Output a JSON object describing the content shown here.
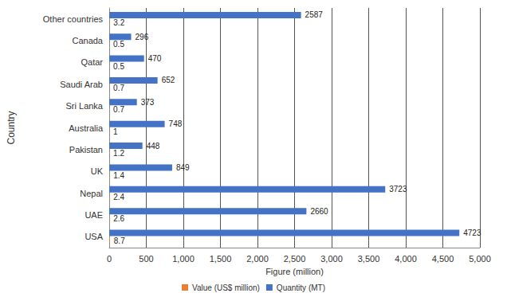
{
  "chart_data": {
    "type": "bar",
    "orientation": "horizontal",
    "x_label": "Figure (million)",
    "y_label": "Country",
    "categories": [
      "USA",
      "UAE",
      "Nepal",
      "UK",
      "Pakistan",
      "Australia",
      "Sri Lanka",
      "Saudi Arab",
      "Qatar",
      "Canada",
      "Other countries"
    ],
    "series": [
      {
        "name": "Value (US$ million)",
        "color": "#ed7d31",
        "values": [
          8.7,
          2.6,
          2.4,
          1.4,
          1.2,
          1,
          0.7,
          0.7,
          0.5,
          0.5,
          3.2
        ]
      },
      {
        "name": "Quantity (MT)",
        "color": "#4472c4",
        "values": [
          4723,
          2660,
          3723,
          849,
          448,
          748,
          373,
          652,
          470,
          296,
          2587
        ]
      }
    ],
    "xlim": [
      0,
      5000
    ],
    "xticks": [
      0,
      500,
      1000,
      1500,
      2000,
      2500,
      3000,
      3500,
      4000,
      4500,
      5000
    ],
    "grid": true,
    "legend": "bottom",
    "data_labels": true
  }
}
